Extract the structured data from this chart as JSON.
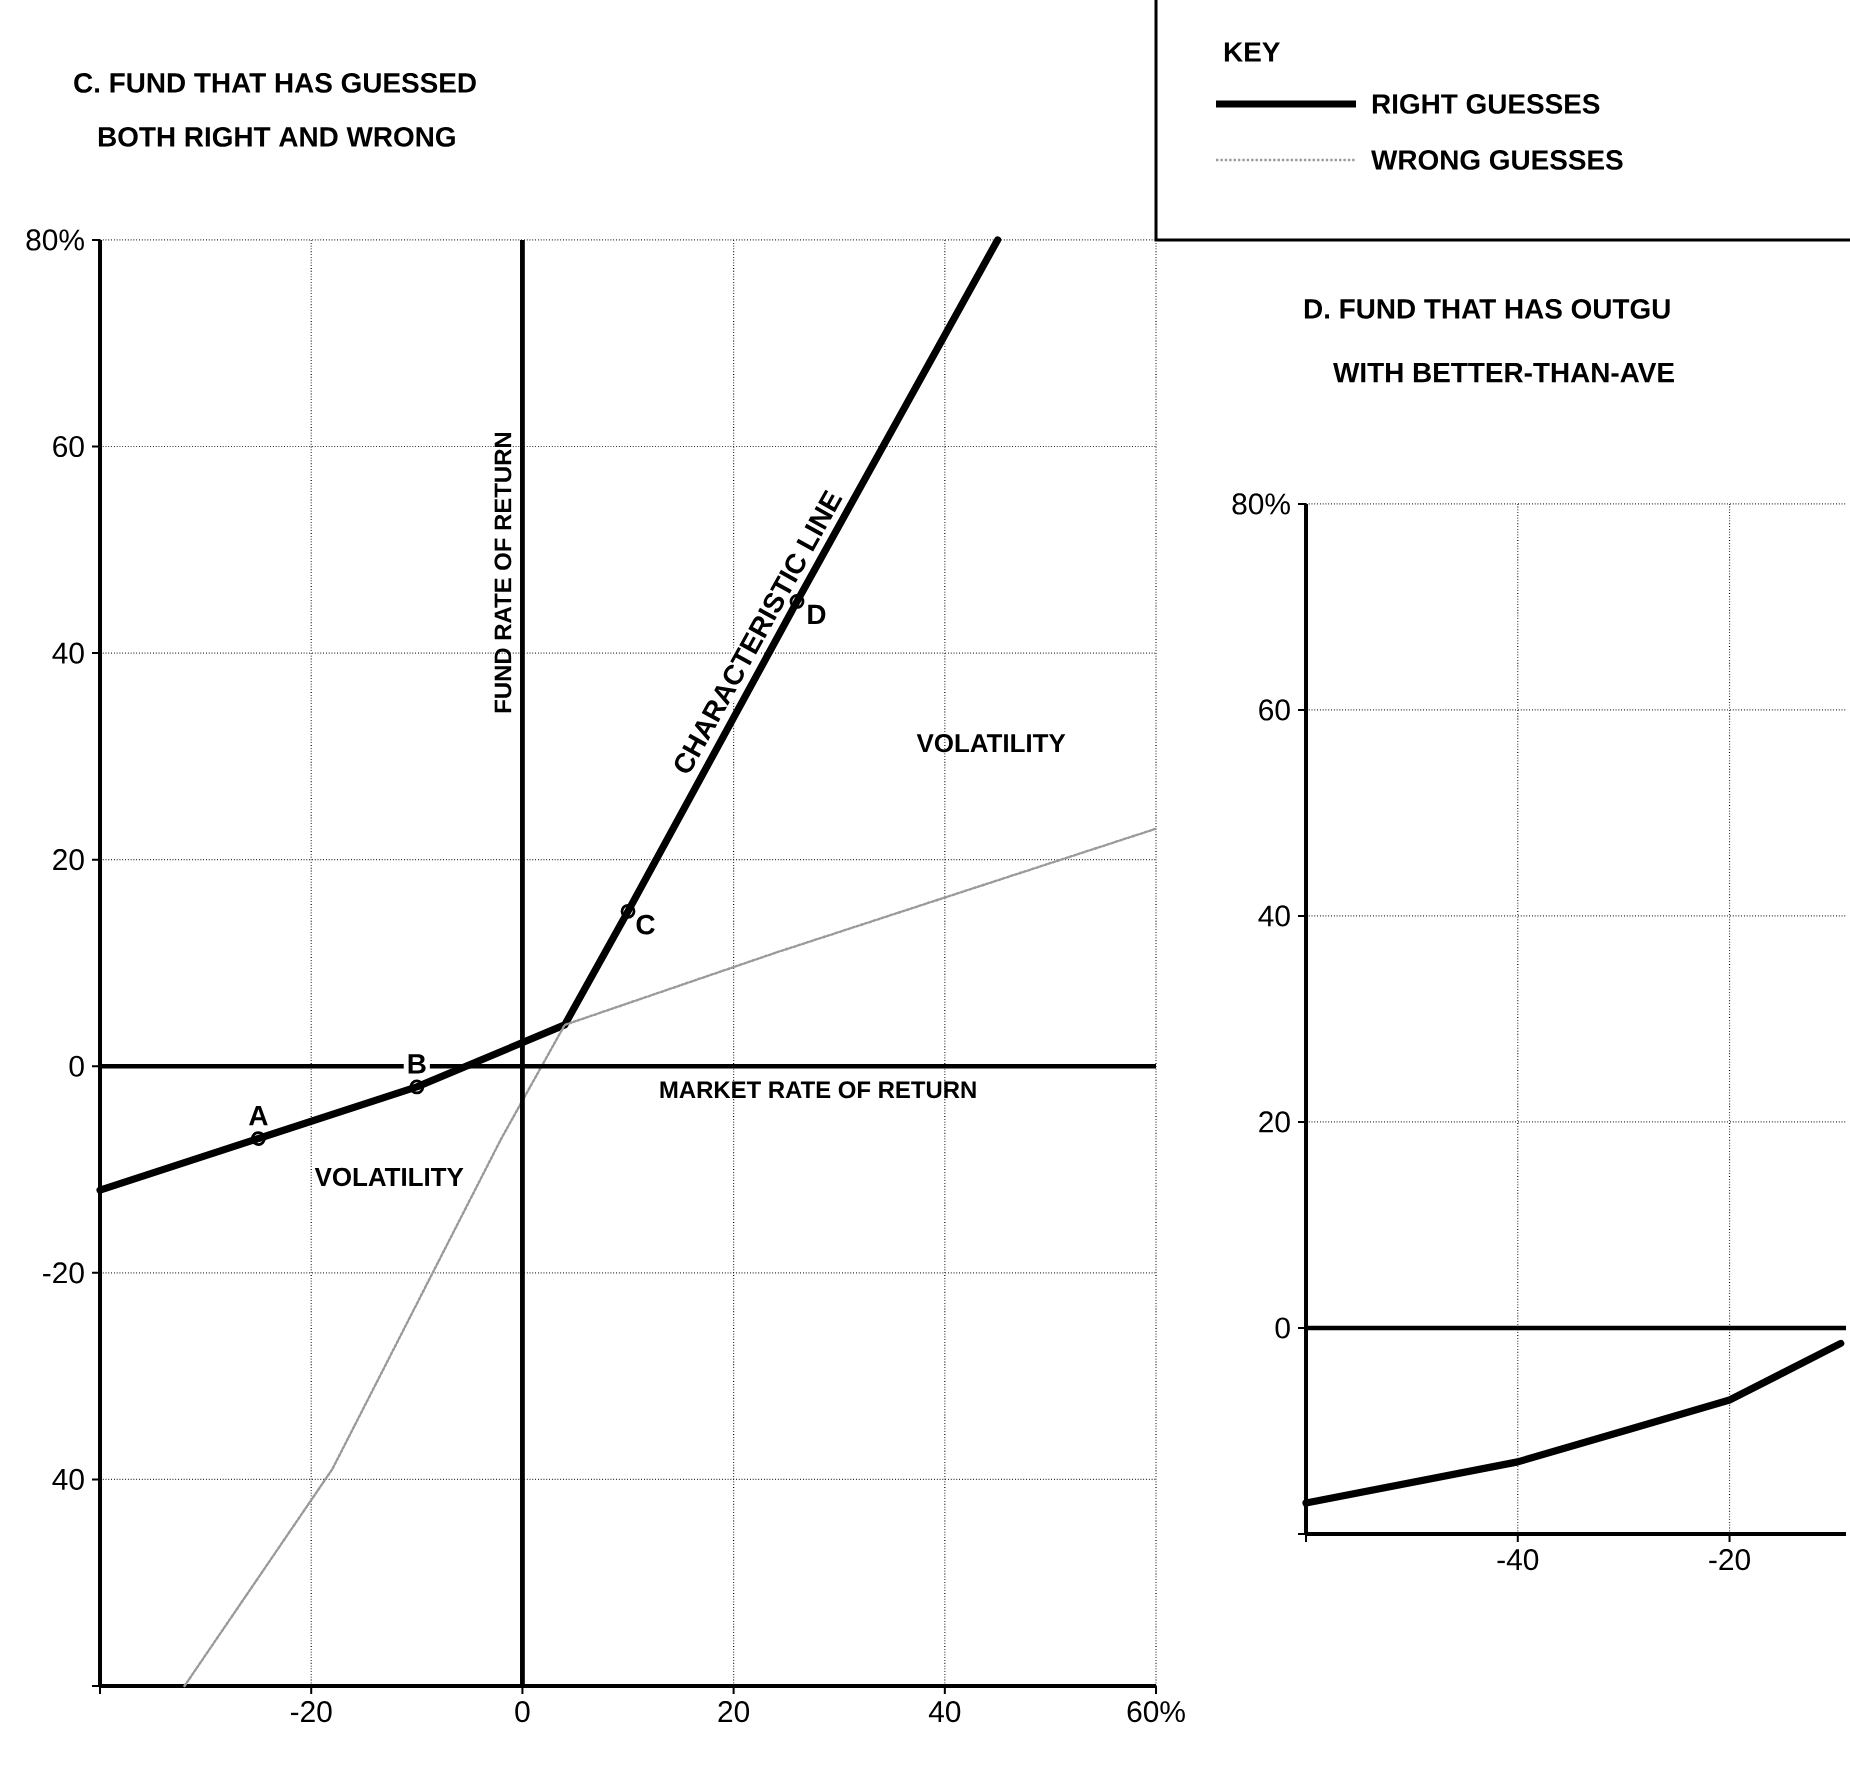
{
  "chart_data": [
    {
      "type": "line",
      "title": "C. FUND THAT HAS GUESSED",
      "subtitle": "BOTH RIGHT AND WRONG",
      "legend_title": "KEY",
      "legend": "top right",
      "grid": true,
      "xlim": [
        -40,
        60
      ],
      "xticks": [
        {
          "value": -40,
          "label": null
        },
        -20,
        0,
        20,
        40,
        {
          "value": 60,
          "label": "60%"
        }
      ],
      "ylim": [
        -60,
        80
      ],
      "yticks": [
        {
          "value": -60,
          "label": null
        },
        {
          "value": -40,
          "label": "40"
        },
        -20,
        0,
        20,
        40,
        60,
        {
          "value": 80,
          "label": "80%"
        }
      ],
      "series": [
        {
          "name": "RIGHT GUESSES",
          "color": "#000000",
          "line_style": "solid",
          "x": [
            -40,
            -25,
            -10,
            4,
            10,
            26,
            45
          ],
          "values": [
            -12,
            -7,
            -2,
            4,
            15,
            45,
            80
          ]
        },
        {
          "name": "WRONG GUESSES",
          "color": "#9a9a9a",
          "line_style": "dotted",
          "x": [
            -32,
            -18,
            -2,
            4,
            24,
            60
          ],
          "values": [
            -60,
            -39,
            -7,
            4,
            11,
            23
          ]
        },
        {
          "type": "scatter",
          "color": "#000000",
          "marker": "circle",
          "x": [
            -25,
            -10,
            10,
            26
          ],
          "values": [
            -7,
            -2,
            15,
            45
          ]
        }
      ],
      "ref_lines": [
        {
          "axis": "x",
          "value": 0,
          "label": "FUND RATE OF RETURN"
        },
        {
          "axis": "y",
          "value": 0,
          "label": "MARKET RATE OF RETURN"
        }
      ],
      "annotations": [
        {
          "text": "A",
          "x": -25,
          "y": -7
        },
        {
          "text": "B",
          "x": -10,
          "y": -2
        },
        {
          "text": "C",
          "x": 10,
          "y": 15
        },
        {
          "text": "D",
          "x": 26,
          "y": 45
        },
        {
          "text": "CHARACTERISTIC LINE",
          "x": 24,
          "y": 41
        },
        "VOLATILITY",
        "VOLATILITY"
      ]
    },
    {
      "type": "line",
      "title": "D. FUND THAT HAS OUTGU",
      "subtitle": "WITH BETTER-THAN-AVE",
      "grid": true,
      "xlim": [
        -60,
        -9
      ],
      "xticks": [
        {
          "value": -60,
          "label": null
        },
        -40,
        -20
      ],
      "ylim": [
        -20,
        80
      ],
      "yticks": [
        {
          "value": -20,
          "label": null
        },
        0,
        20,
        40,
        60,
        {
          "value": 80,
          "label": "80%"
        }
      ],
      "series": [
        {
          "color": "#000000",
          "line_style": "solid",
          "x": [
            -60,
            -50,
            -40,
            -30,
            -20,
            -9.5
          ],
          "values": [
            -17,
            -15,
            -13,
            -10,
            -7,
            -1.5
          ]
        }
      ],
      "ref_lines": [
        {
          "axis": "y",
          "value": 0
        }
      ]
    }
  ]
}
